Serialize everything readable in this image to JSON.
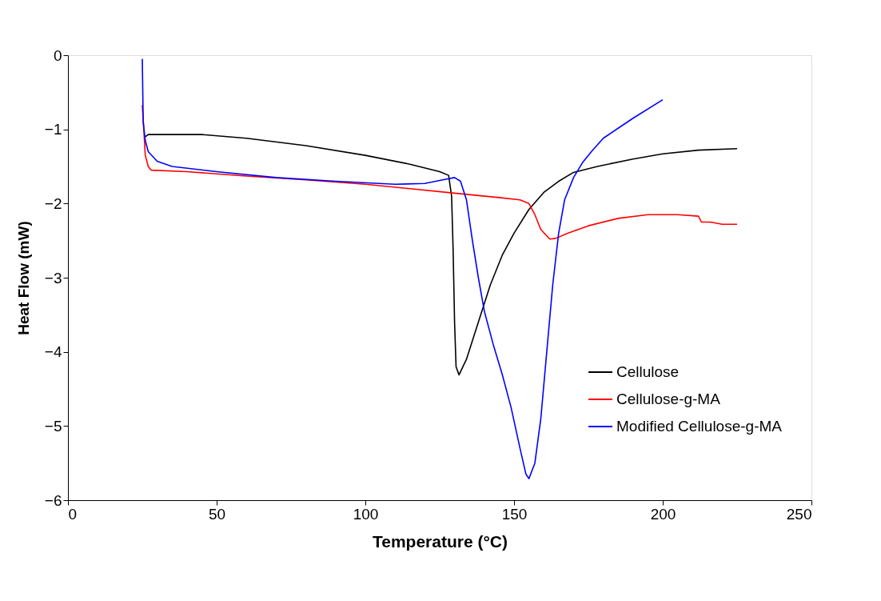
{
  "chart_data": {
    "type": "line",
    "xlabel": "Temperature (°C)",
    "ylabel": "Heat Flow (mW)",
    "xlim": [
      0,
      250
    ],
    "xticks": [
      0,
      50,
      100,
      150,
      200,
      250
    ],
    "ylim": [
      -6,
      0
    ],
    "yticks": [
      -6,
      -5,
      -4,
      -3,
      -2,
      -1,
      0
    ],
    "grid": false,
    "legend": "right",
    "marker": "none",
    "line_style": "solid",
    "series": [
      {
        "name": "Cellulose",
        "color": "#000000",
        "x": [
          26,
          27,
          45,
          60,
          80,
          100,
          115,
          125,
          128,
          129,
          129.5,
          130,
          130.5,
          131.5,
          134,
          138,
          142,
          146,
          150,
          155,
          160,
          165,
          170,
          178,
          190,
          200,
          212,
          225
        ],
        "values": [
          -1.1,
          -1.07,
          -1.07,
          -1.12,
          -1.22,
          -1.35,
          -1.47,
          -1.57,
          -1.62,
          -1.9,
          -2.6,
          -3.6,
          -4.2,
          -4.31,
          -4.1,
          -3.6,
          -3.1,
          -2.7,
          -2.4,
          -2.08,
          -1.85,
          -1.7,
          -1.58,
          -1.5,
          -1.4,
          -1.33,
          -1.28,
          -1.26
        ]
      },
      {
        "name": "Cellulose-g-MA",
        "color": "#ff0000",
        "x": [
          25,
          25.5,
          26,
          27,
          28,
          40,
          60,
          80,
          100,
          115,
          130,
          145,
          152,
          155,
          157,
          159,
          162,
          164,
          168,
          175,
          185,
          195,
          205,
          212,
          213,
          216,
          220,
          225
        ],
        "values": [
          -0.67,
          -1.0,
          -1.35,
          -1.5,
          -1.55,
          -1.57,
          -1.63,
          -1.68,
          -1.74,
          -1.8,
          -1.86,
          -1.92,
          -1.95,
          -2.0,
          -2.15,
          -2.35,
          -2.48,
          -2.47,
          -2.4,
          -2.3,
          -2.2,
          -2.15,
          -2.15,
          -2.17,
          -2.25,
          -2.25,
          -2.28,
          -2.28
        ]
      },
      {
        "name": "Modified Cellulose-g-MA",
        "color": "#0000ff",
        "x": [
          25,
          25.3,
          26,
          27,
          30,
          35,
          50,
          70,
          90,
          110,
          120,
          126,
          130,
          132,
          134,
          136,
          138,
          140,
          143,
          146,
          149,
          152,
          154,
          155,
          157,
          159,
          161,
          163,
          165,
          167,
          170,
          173,
          176,
          180,
          190,
          200
        ],
        "values": [
          -0.05,
          -0.9,
          -1.15,
          -1.3,
          -1.43,
          -1.5,
          -1.57,
          -1.65,
          -1.7,
          -1.74,
          -1.73,
          -1.68,
          -1.65,
          -1.7,
          -1.95,
          -2.5,
          -3.0,
          -3.45,
          -3.9,
          -4.3,
          -4.75,
          -5.3,
          -5.65,
          -5.71,
          -5.5,
          -4.9,
          -4.0,
          -3.1,
          -2.4,
          -1.95,
          -1.65,
          -1.45,
          -1.3,
          -1.12,
          -0.85,
          -0.6
        ]
      }
    ]
  }
}
